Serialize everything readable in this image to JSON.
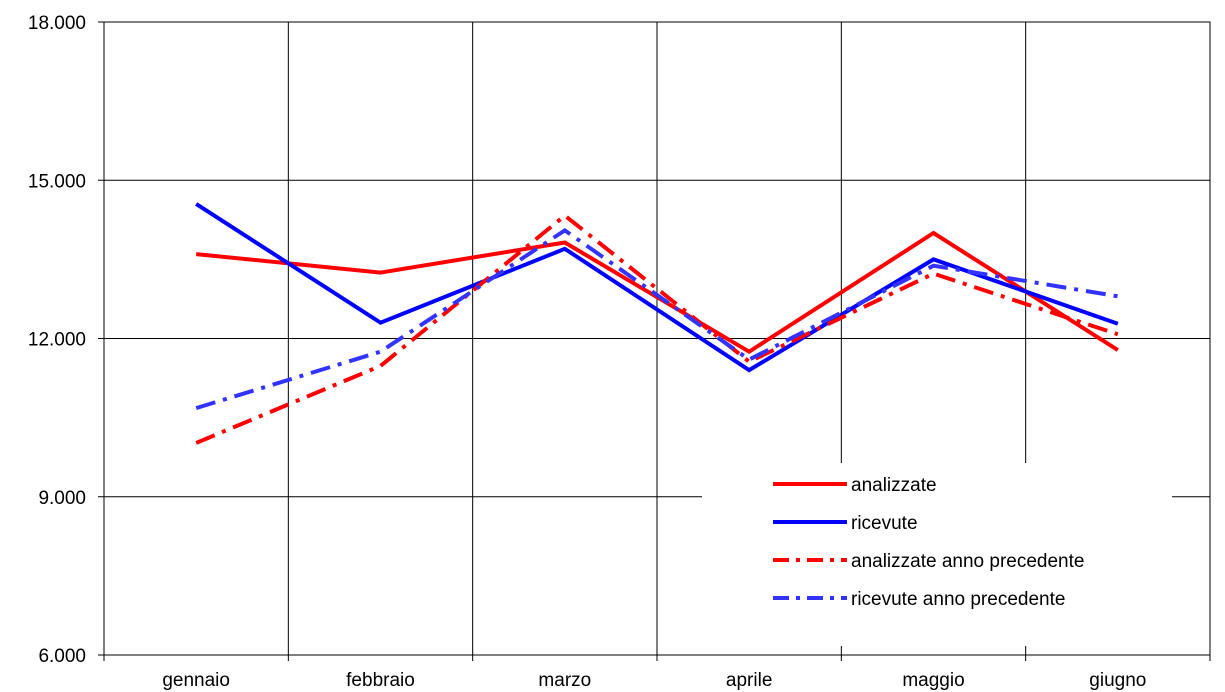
{
  "chart_data": {
    "type": "line",
    "title": "",
    "xlabel": "",
    "ylabel": "",
    "categories": [
      "gennaio",
      "febbraio",
      "marzo",
      "aprile",
      "maggio",
      "giugno"
    ],
    "ylim": [
      6000,
      18000
    ],
    "yticks": [
      6000,
      9000,
      12000,
      15000,
      18000
    ],
    "ytick_labels": [
      "6.000",
      "9.000",
      "12.000",
      "15.000",
      "18.000"
    ],
    "grid": true,
    "legend_position": "bottom-right",
    "series": [
      {
        "name": "analizzate",
        "values": [
          13600,
          13250,
          13820,
          11750,
          14000,
          11780
        ],
        "color": "#ff0000",
        "dash": "solid"
      },
      {
        "name": "ricevute",
        "values": [
          14550,
          12300,
          13700,
          11400,
          13500,
          12280
        ],
        "color": "#0000ff",
        "dash": "solid"
      },
      {
        "name": "analizzate anno precedente",
        "values": [
          10020,
          11480,
          14330,
          11560,
          13230,
          12080
        ],
        "color": "#ff0000",
        "dash": "dashdot"
      },
      {
        "name": "ricevute anno precedente",
        "values": [
          10680,
          11750,
          14050,
          11600,
          13380,
          12800
        ],
        "color": "#3333ff",
        "dash": "dashdot"
      }
    ]
  }
}
